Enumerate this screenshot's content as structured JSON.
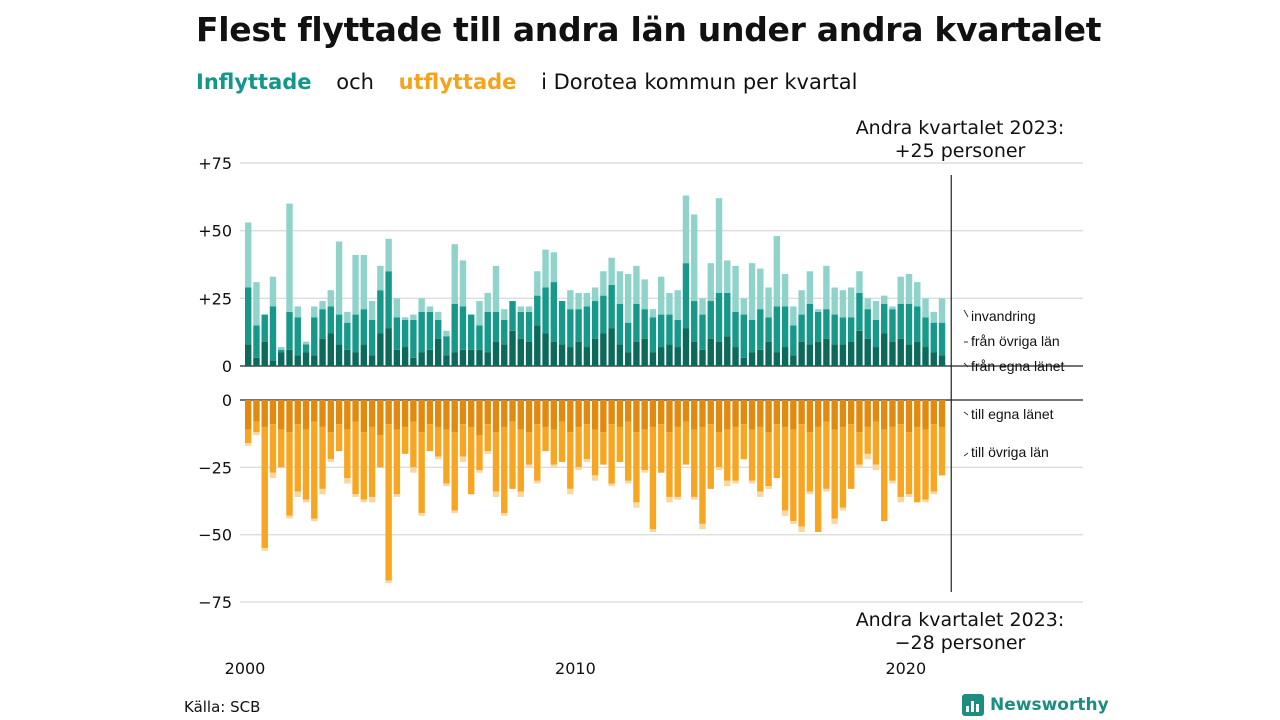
{
  "title": "Flest flyttade till andra län under andra kvartalet",
  "subtitle": {
    "inflow_word": "Inflyttade",
    "and_word": "och",
    "outflow_word": "utflyttade",
    "rest": "i Dorotea  kommun  per  kvartal"
  },
  "colors": {
    "in_own": "#0b6a5b",
    "in_other": "#16998a",
    "in_immigration": "#8fd3cb",
    "out_own": "#e08a10",
    "out_other": "#f6a623",
    "out_emigration": "#f9d7a0"
  },
  "source": "Källa: SCB",
  "brand": "Newsworthy",
  "chart_data": {
    "type": "bar",
    "x_tick_labels": [
      "2000",
      "2010",
      "2020"
    ],
    "top_axis": {
      "ticks": [
        "+75",
        "+50",
        "+25",
        "0"
      ],
      "ylim": [
        0,
        75
      ]
    },
    "bottom_axis": {
      "ticks": [
        "0",
        "−25",
        "−50",
        "−75"
      ],
      "ylim": [
        -75,
        0
      ]
    },
    "inflow_series": [
      "från egna länet",
      "från övriga län",
      "invandring"
    ],
    "outflow_series": [
      "till egna länet",
      "till övriga län"
    ],
    "annotation_top": [
      "Andra kvartalet 2023:",
      "+25 personer"
    ],
    "annotation_bottom": [
      "Andra kvartalet 2023:",
      "−28 personer"
    ],
    "quarters_start": "2000Q1",
    "in_totals": [
      53,
      31,
      19,
      33,
      7,
      60,
      22,
      9,
      22,
      24,
      28,
      46,
      20,
      41,
      41,
      24,
      37,
      47,
      25,
      18,
      19,
      25,
      22,
      20,
      13,
      45,
      39,
      19,
      24,
      27,
      37,
      21,
      22,
      22,
      22,
      35,
      43,
      42,
      24,
      28,
      27,
      27,
      29,
      35,
      40,
      35,
      34,
      37,
      32,
      21,
      33,
      27,
      28,
      63,
      56,
      25,
      38,
      62,
      39,
      37,
      25,
      38,
      36,
      29,
      48,
      34,
      22,
      28,
      35,
      21,
      37,
      29,
      28,
      29,
      35,
      25,
      24,
      26,
      22,
      33,
      34,
      31,
      25,
      20,
      25
    ],
    "in_local": [
      8,
      3,
      9,
      2,
      5,
      6,
      4,
      5,
      4,
      10,
      12,
      8,
      6,
      5,
      8,
      4,
      12,
      14,
      6,
      7,
      3,
      5,
      6,
      10,
      4,
      5,
      6,
      6,
      6,
      5,
      9,
      8,
      13,
      10,
      9,
      15,
      12,
      9,
      8,
      7,
      9,
      7,
      10,
      12,
      14,
      8,
      5,
      9,
      10,
      5,
      7,
      8,
      7,
      14,
      9,
      6,
      10,
      9,
      11,
      7,
      3,
      5,
      6,
      9,
      5,
      7,
      4,
      9,
      8,
      9,
      10,
      8,
      8,
      9,
      13,
      10,
      7,
      12,
      9,
      10,
      8,
      9,
      7,
      5,
      4
    ],
    "in_other_ext": [
      21,
      12,
      10,
      20,
      1,
      14,
      14,
      3,
      14,
      11,
      10,
      11,
      10,
      14,
      13,
      13,
      16,
      21,
      12,
      10,
      14,
      15,
      14,
      7,
      7,
      18,
      16,
      13,
      9,
      15,
      11,
      9,
      11,
      10,
      11,
      11,
      17,
      22,
      16,
      14,
      12,
      15,
      14,
      14,
      16,
      15,
      11,
      14,
      11,
      13,
      12,
      11,
      10,
      24,
      15,
      13,
      14,
      18,
      16,
      13,
      16,
      12,
      15,
      9,
      17,
      15,
      11,
      10,
      15,
      11,
      11,
      11,
      10,
      9,
      14,
      11,
      10,
      11,
      12,
      13,
      15,
      13,
      11,
      11,
      12
    ],
    "in_immig": [
      24,
      16,
      0,
      11,
      1,
      40,
      4,
      1,
      4,
      3,
      6,
      27,
      4,
      22,
      20,
      7,
      9,
      12,
      7,
      1,
      2,
      5,
      2,
      3,
      2,
      22,
      17,
      0,
      9,
      7,
      17,
      4,
      0,
      2,
      2,
      9,
      14,
      11,
      0,
      7,
      6,
      5,
      5,
      9,
      10,
      12,
      18,
      14,
      11,
      3,
      14,
      8,
      11,
      25,
      32,
      6,
      14,
      35,
      12,
      17,
      6,
      21,
      15,
      11,
      26,
      12,
      7,
      9,
      12,
      1,
      16,
      10,
      10,
      11,
      8,
      4,
      7,
      3,
      1,
      10,
      11,
      9,
      7,
      4,
      9
    ],
    "out_local": [
      11,
      8,
      10,
      9,
      11,
      12,
      9,
      11,
      8,
      10,
      12,
      9,
      11,
      8,
      12,
      10,
      13,
      9,
      11,
      10,
      8,
      12,
      9,
      10,
      11,
      12,
      9,
      10,
      13,
      9,
      12,
      10,
      8,
      11,
      12,
      9,
      10,
      11,
      8,
      12,
      10,
      9,
      11,
      12,
      9,
      10,
      8,
      12,
      11,
      10,
      9,
      12,
      10,
      8,
      11,
      10,
      9,
      12,
      11,
      10,
      9,
      11,
      10,
      12,
      9,
      10,
      11,
      9,
      12,
      10,
      8,
      11,
      10,
      9,
      12,
      10,
      8,
      11,
      10,
      9,
      12,
      10,
      11,
      9,
      10
    ],
    "out_other_ext": [
      5,
      4,
      45,
      18,
      14,
      31,
      25,
      26,
      36,
      23,
      10,
      10,
      18,
      27,
      25,
      26,
      12,
      58,
      24,
      10,
      17,
      30,
      10,
      11,
      20,
      29,
      12,
      25,
      13,
      10,
      22,
      32,
      25,
      23,
      12,
      21,
      9,
      13,
      15,
      21,
      15,
      13,
      17,
      12,
      22,
      13,
      22,
      26,
      15,
      38,
      18,
      24,
      26,
      16,
      25,
      36,
      24,
      13,
      19,
      20,
      13,
      19,
      24,
      20,
      20,
      31,
      34,
      38,
      22,
      39,
      25,
      33,
      30,
      24,
      12,
      10,
      16,
      34,
      20,
      27,
      23,
      28,
      26,
      25,
      18
    ],
    "out_emig": [
      1,
      1,
      1,
      2,
      0,
      1,
      2,
      1,
      1,
      2,
      1,
      0,
      2,
      1,
      1,
      2,
      0,
      1,
      1,
      0,
      2,
      1,
      0,
      1,
      1,
      1,
      2,
      0,
      1,
      1,
      2,
      1,
      0,
      2,
      1,
      1,
      0,
      1,
      0,
      2,
      1,
      1,
      2,
      0,
      1,
      0,
      1,
      2,
      1,
      1,
      0,
      2,
      1,
      0,
      1,
      2,
      0,
      1,
      2,
      1,
      0,
      1,
      2,
      1,
      0,
      2,
      1,
      2,
      1,
      0,
      1,
      2,
      1,
      0,
      1,
      2,
      2,
      0,
      1,
      2,
      1,
      0,
      1,
      1,
      0
    ]
  },
  "layer_labels_in": [
    "invandring",
    "från övriga län",
    "från egna länet"
  ],
  "layer_labels_out": [
    "till egna länet",
    "till övriga län"
  ]
}
